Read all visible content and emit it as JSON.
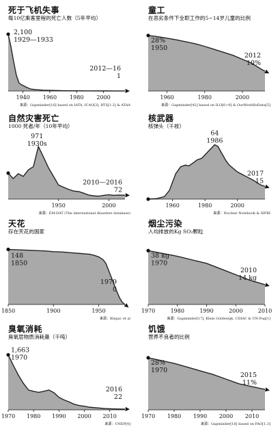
{
  "charts": [
    {
      "id": "air",
      "title": "死于飞机失事",
      "subtitle": "每10亿乘客里程的死亡人数（5年平均）",
      "chart_data": {
        "type": "area",
        "xlim": [
          1929,
          2016
        ],
        "ylim": [
          0,
          2200
        ],
        "x": [
          1929,
          1931,
          1933,
          1935,
          1937,
          1939,
          1941,
          1943,
          1946,
          1950,
          1955,
          1960,
          1965,
          1970,
          1980,
          1990,
          2000,
          2010,
          2016
        ],
        "values": [
          2100,
          1650,
          1100,
          600,
          300,
          230,
          180,
          130,
          70,
          50,
          30,
          22,
          16,
          12,
          8,
          4,
          3,
          1,
          1
        ]
      },
      "xticks": [
        "1940",
        "1960",
        "1980",
        "2000"
      ],
      "tick_values": [
        1940,
        1960,
        1980,
        2000
      ],
      "annotations": [
        {
          "value": "2,100",
          "period": "1929—1933",
          "x": 1929,
          "y": 2100
        },
        {
          "value": "1",
          "period": "2012—16",
          "x": 2016,
          "y": 1
        }
      ],
      "source": "来源：Gapminder[16] based on IATA, ICAO[3], BTS[1.2] & ATAA"
    },
    {
      "id": "child",
      "title": "童工",
      "subtitle": "在恶劣条件下全职工作的5~14岁儿童的比例",
      "chart_data": {
        "type": "area",
        "xlim": [
          1950,
          2012
        ],
        "ylim": [
          0,
          30
        ],
        "x": [
          1950,
          1955,
          1960,
          1965,
          1970,
          1975,
          1980,
          1985,
          1990,
          1995,
          2000,
          2005,
          2010,
          2012
        ],
        "values": [
          28,
          27.4,
          26.6,
          25.8,
          24.8,
          23.8,
          22.5,
          21,
          19.5,
          18,
          16,
          14,
          11,
          10
        ]
      },
      "xticks": [
        "1960",
        "1980",
        "2000"
      ],
      "tick_values": [
        1960,
        1980,
        2000
      ],
      "annotations": [
        {
          "value": "28%",
          "period": "1950",
          "x": 1950,
          "y": 28
        },
        {
          "value": "10%",
          "period": "2012",
          "x": 2012,
          "y": 10
        }
      ],
      "source": "来源：Gapminder[42] based on ILO[6~9] & OurWorldInData[5]"
    },
    {
      "id": "disaster",
      "title": "自然灾害死亡",
      "subtitle": "1000 死者/年（10年平均）",
      "chart_data": {
        "type": "area",
        "xlim": [
          1900,
          2016
        ],
        "ylim": [
          0,
          1100
        ],
        "x": [
          1900,
          1905,
          1910,
          1915,
          1920,
          1925,
          1930,
          1935,
          1940,
          1945,
          1950,
          1955,
          1960,
          1965,
          1970,
          1975,
          1980,
          1985,
          1990,
          1995,
          2000,
          2005,
          2010,
          2016
        ],
        "values": [
          480,
          380,
          470,
          420,
          540,
          600,
          971,
          780,
          580,
          420,
          260,
          220,
          180,
          150,
          140,
          110,
          75,
          60,
          55,
          70,
          80,
          70,
          75,
          72
        ]
      },
      "xticks": [
        "1950",
        "2000"
      ],
      "tick_values": [
        1950,
        2000
      ],
      "annotations": [
        {
          "value": "971",
          "period": "1930s",
          "x": 1930,
          "y": 971
        },
        {
          "value": "72",
          "period": "2010—2016",
          "x": 2016,
          "y": 72
        }
      ],
      "source": "来源：EM-DAT (The international disasters database)"
    },
    {
      "id": "nuclear",
      "title": "核武器",
      "subtitle": "核弹头（千枚）",
      "chart_data": {
        "type": "area",
        "xlim": [
          1945,
          2017
        ],
        "ylim": [
          0,
          70
        ],
        "x": [
          1945,
          1950,
          1955,
          1958,
          1960,
          1962,
          1965,
          1968,
          1970,
          1973,
          1975,
          1978,
          1980,
          1983,
          1986,
          1988,
          1990,
          1993,
          1995,
          2000,
          2005,
          2010,
          2014,
          2017
        ],
        "values": [
          0,
          0.5,
          3,
          10,
          20,
          30,
          38,
          40,
          39,
          43,
          46,
          48,
          52,
          58,
          64,
          62,
          55,
          45,
          40,
          32,
          27,
          22,
          17,
          15
        ]
      },
      "xticks": [
        "1960",
        "1980",
        "2000"
      ],
      "tick_values": [
        1960,
        1980,
        2000
      ],
      "annotations": [
        {
          "value": "64",
          "period": "1986",
          "x": 1986,
          "y": 64
        },
        {
          "value": "15",
          "period": "2017",
          "x": 2017,
          "y": 15
        }
      ],
      "source": "来源：Nuclear Notebook & SIPRI"
    },
    {
      "id": "smallpox",
      "title": "天花",
      "subtitle": "存在天花的国家",
      "chart_data": {
        "type": "area",
        "xlim": [
          1850,
          1979
        ],
        "ylim": [
          0,
          160
        ],
        "x": [
          1850,
          1860,
          1870,
          1880,
          1890,
          1900,
          1910,
          1920,
          1930,
          1940,
          1945,
          1950,
          1955,
          1958,
          1962,
          1966,
          1970,
          1973,
          1976,
          1979
        ],
        "values": [
          148,
          147,
          146,
          145,
          144,
          142,
          141,
          139,
          137,
          135,
          132,
          128,
          120,
          110,
          85,
          60,
          35,
          18,
          6,
          0
        ]
      },
      "xticks": [
        "1850",
        "1900",
        "1950"
      ],
      "tick_values": [
        1850,
        1900,
        1950
      ],
      "annotations": [
        {
          "value": "148",
          "period": "1850",
          "x": 1850,
          "y": 148
        },
        {
          "value": "0",
          "period": "1979",
          "x": 1979,
          "y": 0
        }
      ],
      "source": "来源：Klepac et al"
    },
    {
      "id": "soot",
      "title": "烟尘污染",
      "subtitle": "人均排放的Kg SO₂颗粒",
      "chart_data": {
        "type": "area",
        "xlim": [
          1970,
          2010
        ],
        "ylim": [
          0,
          42
        ],
        "x": [
          1970,
          1975,
          1980,
          1985,
          1990,
          1995,
          2000,
          2005,
          2010
        ],
        "values": [
          38,
          36,
          34,
          31.5,
          29,
          25,
          21,
          17,
          14
        ]
      },
      "xticks": [
        "1970",
        "1980",
        "1990",
        "2000",
        "2010"
      ],
      "tick_values": [
        1970,
        1980,
        1990,
        2000,
        2010
      ],
      "annotations": [
        {
          "value": "38 kg",
          "period": "1970",
          "x": 1970,
          "y": 38
        },
        {
          "value": "14 kg",
          "period": "2010",
          "x": 2010,
          "y": 14
        }
      ],
      "source": "来源：Gapminder[17], Klein Goldewijk, CDIAC & UN-Pop[1]"
    },
    {
      "id": "ozone",
      "title": "臭氧消耗",
      "subtitle": "臭氧层物质消耗量（千吨）",
      "chart_data": {
        "type": "area",
        "xlim": [
          1970,
          2016
        ],
        "ylim": [
          0,
          1800
        ],
        "x": [
          1970,
          1972,
          1974,
          1976,
          1978,
          1980,
          1982,
          1984,
          1986,
          1988,
          1990,
          1992,
          1994,
          1996,
          1998,
          2000,
          2002,
          2005,
          2008,
          2011,
          2014,
          2016
        ],
        "values": [
          1663,
          1350,
          1050,
          800,
          600,
          560,
          530,
          560,
          600,
          520,
          380,
          300,
          240,
          170,
          130,
          110,
          80,
          60,
          40,
          30,
          25,
          22
        ]
      },
      "xticks": [
        "1970",
        "1980",
        "1990",
        "2000",
        "2010"
      ],
      "tick_values": [
        1970,
        1980,
        1990,
        2000,
        2010
      ],
      "annotations": [
        {
          "value": "1,663",
          "period": "1970",
          "x": 1970,
          "y": 1663
        },
        {
          "value": "22",
          "period": "2016",
          "x": 2016,
          "y": 22
        }
      ],
      "source": "来源：UNEP[4]"
    },
    {
      "id": "hunger",
      "title": "饥饿",
      "subtitle": "营养不良者的比例",
      "chart_data": {
        "type": "area",
        "xlim": [
          1970,
          2015
        ],
        "ylim": [
          0,
          32
        ],
        "x": [
          1970,
          1975,
          1980,
          1985,
          1990,
          1995,
          2000,
          2005,
          2010,
          2015
        ],
        "values": [
          28,
          26.5,
          25,
          23,
          21,
          19,
          16.5,
          14,
          12.5,
          11
        ]
      },
      "xticks": [
        "1970",
        "1980",
        "1990",
        "2000",
        "2010"
      ],
      "tick_values": [
        1970,
        1980,
        1990,
        2000,
        2010
      ],
      "annotations": [
        {
          "value": "28%",
          "period": "1970",
          "x": 1970,
          "y": 28
        },
        {
          "value": "11%",
          "period": "2015",
          "x": 2015,
          "y": 11
        }
      ],
      "source": "来源：Gapminder[18] based on FAO[1.3]"
    }
  ]
}
